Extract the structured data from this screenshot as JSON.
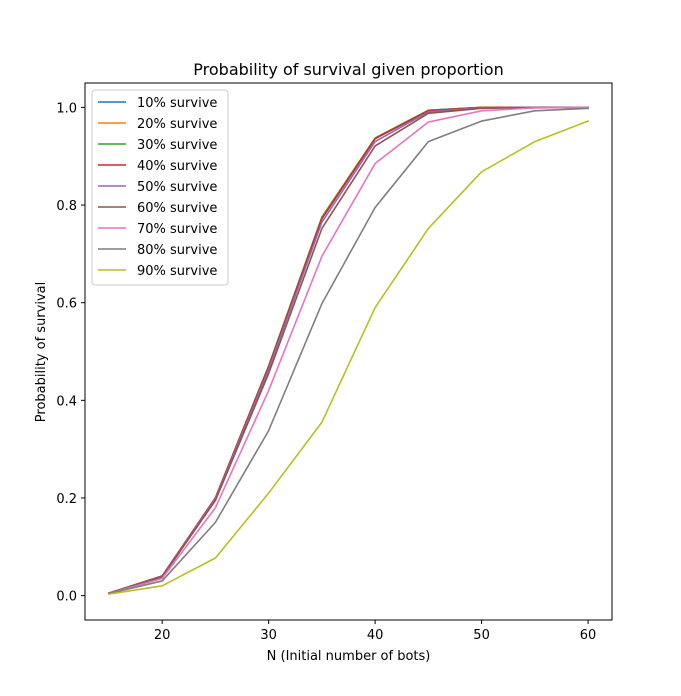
{
  "chart_data": {
    "type": "line",
    "title": "Probability of survival given proportion",
    "xlabel": "N (Initial number of bots)",
    "ylabel": "Probability of survival",
    "xlim": [
      12.75,
      62.25
    ],
    "ylim": [
      -0.05,
      1.05
    ],
    "x_ticks": [
      20,
      30,
      40,
      50,
      60
    ],
    "y_ticks": [
      0.0,
      0.2,
      0.4,
      0.6,
      0.8,
      1.0
    ],
    "x_tick_labels": [
      "20",
      "30",
      "40",
      "50",
      "60"
    ],
    "y_tick_labels": [
      "0.0",
      "0.2",
      "0.4",
      "0.6",
      "0.8",
      "1.0"
    ],
    "legend_position": "upper-left",
    "grid": false,
    "x": [
      15,
      20,
      25,
      30,
      35,
      40,
      45,
      50,
      55,
      60
    ],
    "series": [
      {
        "name": "10% survive",
        "color": "#1f77b4",
        "values": [
          0.005,
          0.04,
          0.2,
          0.47,
          0.775,
          0.937,
          0.994,
          1.0,
          1.0,
          1.0
        ]
      },
      {
        "name": "20% survive",
        "color": "#ff7f0e",
        "values": [
          0.005,
          0.04,
          0.2,
          0.47,
          0.775,
          0.937,
          0.994,
          1.0,
          1.0,
          1.0
        ]
      },
      {
        "name": "30% survive",
        "color": "#2ca02c",
        "values": [
          0.005,
          0.04,
          0.2,
          0.47,
          0.774,
          0.937,
          0.994,
          1.0,
          1.0,
          1.0
        ]
      },
      {
        "name": "40% survive",
        "color": "#d62728",
        "values": [
          0.005,
          0.04,
          0.2,
          0.468,
          0.772,
          0.936,
          0.993,
          1.0,
          1.0,
          1.0
        ]
      },
      {
        "name": "50% survive",
        "color": "#9467bd",
        "values": [
          0.005,
          0.039,
          0.198,
          0.463,
          0.765,
          0.93,
          0.991,
          0.999,
          1.0,
          1.0
        ]
      },
      {
        "name": "60% survive",
        "color": "#8c564b",
        "values": [
          0.005,
          0.038,
          0.195,
          0.455,
          0.752,
          0.921,
          0.988,
          0.998,
          1.0,
          1.0
        ]
      },
      {
        "name": "70% survive",
        "color": "#e377c2",
        "values": [
          0.004,
          0.035,
          0.18,
          0.42,
          0.695,
          0.885,
          0.97,
          0.993,
          0.999,
          1.0
        ]
      },
      {
        "name": "80% survive",
        "color": "#7f7f7f",
        "values": [
          0.004,
          0.03,
          0.15,
          0.338,
          0.598,
          0.795,
          0.93,
          0.972,
          0.993,
          0.998
        ]
      },
      {
        "name": "90% survive",
        "color": "#bcbd22",
        "values": [
          0.003,
          0.02,
          0.077,
          0.21,
          0.355,
          0.59,
          0.752,
          0.868,
          0.93,
          0.972
        ]
      }
    ]
  }
}
